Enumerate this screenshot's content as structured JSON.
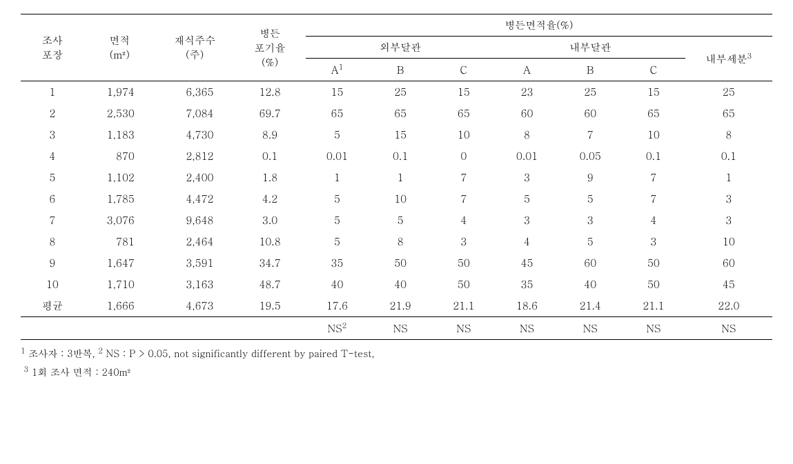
{
  "table": {
    "headers": {
      "col1": "조사\n포장",
      "col2": "면적\n(m²)",
      "col3": "재식주수\n(주)",
      "col4": "병든\n포기율\n(%)",
      "group_top": "병든면적율(%)",
      "group_left": "외부달관",
      "group_right": "내부달관",
      "col_last": "내부세분",
      "sup_last": "3",
      "sub_a": "A",
      "sup_a": "1",
      "sub_b": "B",
      "sub_c": "C"
    },
    "rows": [
      {
        "id": "1",
        "area": "1,974",
        "plants": "6,365",
        "rate": "12.8",
        "eA": "15",
        "eB": "25",
        "eC": "15",
        "iA": "23",
        "iB": "25",
        "iC": "15",
        "last": "25"
      },
      {
        "id": "2",
        "area": "2,530",
        "plants": "7,084",
        "rate": "69.7",
        "eA": "65",
        "eB": "65",
        "eC": "65",
        "iA": "60",
        "iB": "60",
        "iC": "65",
        "last": "65"
      },
      {
        "id": "3",
        "area": "1,183",
        "plants": "4,730",
        "rate": "8.9",
        "eA": "5",
        "eB": "15",
        "eC": "10",
        "iA": "8",
        "iB": "7",
        "iC": "10",
        "last": "8"
      },
      {
        "id": "4",
        "area": "870",
        "plants": "2,812",
        "rate": "0.1",
        "eA": "0.01",
        "eB": "0.1",
        "eC": "0",
        "iA": "0.01",
        "iB": "0.05",
        "iC": "0.1",
        "last": "0.1"
      },
      {
        "id": "5",
        "area": "1,102",
        "plants": "2,400",
        "rate": "1.8",
        "eA": "1",
        "eB": "1",
        "eC": "7",
        "iA": "3",
        "iB": "9",
        "iC": "7",
        "last": "1"
      },
      {
        "id": "6",
        "area": "1,785",
        "plants": "4,472",
        "rate": "4.2",
        "eA": "5",
        "eB": "10",
        "eC": "7",
        "iA": "5",
        "iB": "5",
        "iC": "7",
        "last": "3"
      },
      {
        "id": "7",
        "area": "3,076",
        "plants": "9,648",
        "rate": "3.0",
        "eA": "5",
        "eB": "5",
        "eC": "4",
        "iA": "3",
        "iB": "3",
        "iC": "4",
        "last": "3"
      },
      {
        "id": "8",
        "area": "781",
        "plants": "2,464",
        "rate": "10.8",
        "eA": "5",
        "eB": "8",
        "eC": "3",
        "iA": "4",
        "iB": "5",
        "iC": "3",
        "last": "10"
      },
      {
        "id": "9",
        "area": "1,647",
        "plants": "3,591",
        "rate": "34.7",
        "eA": "35",
        "eB": "50",
        "eC": "50",
        "iA": "45",
        "iB": "60",
        "iC": "50",
        "last": "60"
      },
      {
        "id": "10",
        "area": "1,710",
        "plants": "3,163",
        "rate": "48.7",
        "eA": "40",
        "eB": "40",
        "eC": "50",
        "iA": "35",
        "iB": "40",
        "iC": "50",
        "last": "45"
      }
    ],
    "avg_row": {
      "id": "평균",
      "area": "1,666",
      "plants": "4,673",
      "rate": "19.5",
      "eA": "17.6",
      "eB": "21.9",
      "eC": "21.1",
      "iA": "18.6",
      "iB": "21.4",
      "iC": "21.1",
      "last": "22.0"
    },
    "ns_row": {
      "eA": "NS",
      "sup_ns": "2",
      "eB": "NS",
      "eC": "NS",
      "iA": "NS",
      "iB": "NS",
      "iC": "NS",
      "last": "NS"
    }
  },
  "footnotes": {
    "line1_a": " 조사자 : 3반복, ",
    "line1_b": " NS : P > 0.05, not significantly different by paired T-test,",
    "line2": " 1회 조사 면적 : 240m²"
  },
  "style": {
    "col_widths": [
      "80px",
      "90px",
      "100px",
      "90px",
      "80px",
      "80px",
      "80px",
      "80px",
      "80px",
      "80px",
      "110px"
    ]
  }
}
